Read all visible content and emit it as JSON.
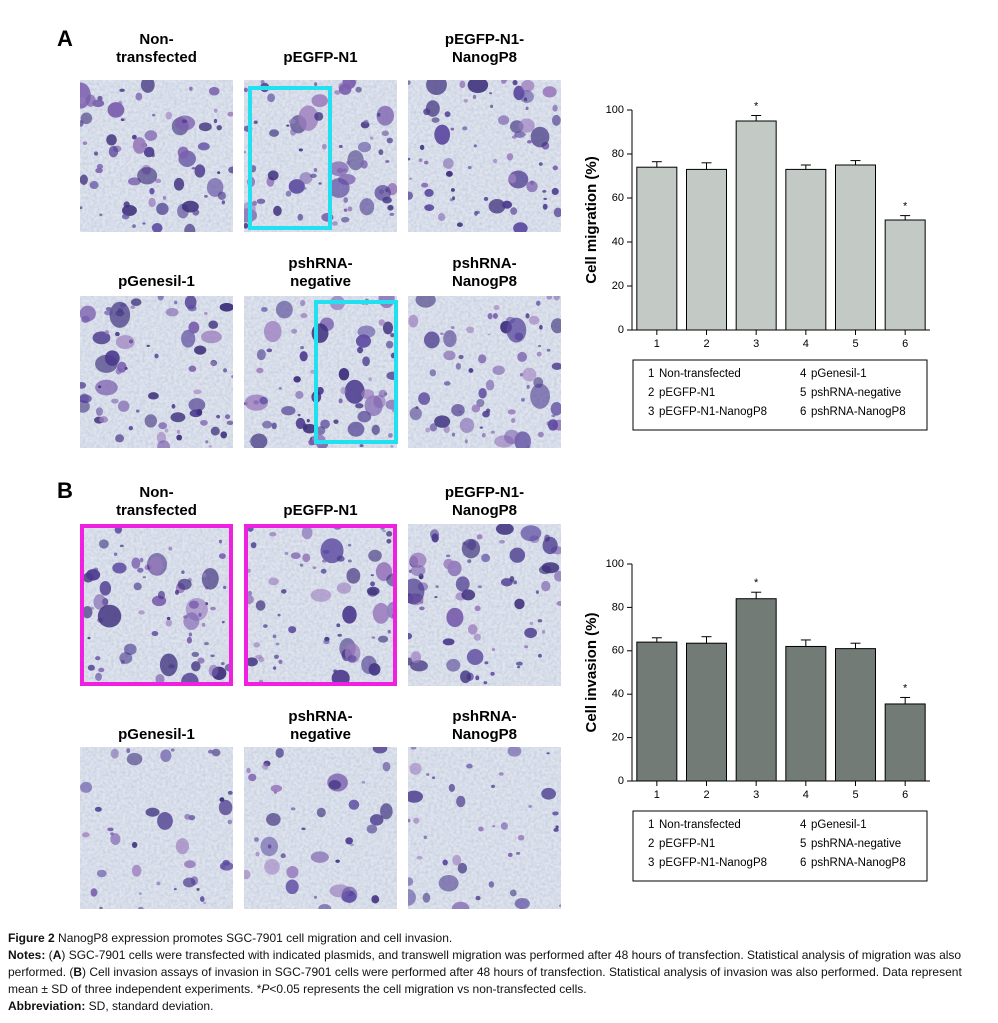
{
  "panels": [
    {
      "label": "A",
      "images": [
        {
          "title": [
            "Non-",
            "transfected"
          ]
        },
        {
          "title": [
            "pEGFP-N1"
          ]
        },
        {
          "title": [
            "pEGFP-N1-",
            "NanogP8"
          ]
        },
        {
          "title": [
            "pGenesil-1"
          ]
        },
        {
          "title": [
            "pshRNA-",
            "negative"
          ]
        },
        {
          "title": [
            "pshRNA-",
            "NanogP8"
          ]
        }
      ]
    },
    {
      "label": "B",
      "images": [
        {
          "title": [
            "Non-",
            "transfected"
          ]
        },
        {
          "title": [
            "pEGFP-N1"
          ]
        },
        {
          "title": [
            "pEGFP-N1-",
            "NanogP8"
          ]
        },
        {
          "title": [
            "pGenesil-1"
          ]
        },
        {
          "title": [
            "pshRNA-",
            "negative"
          ]
        },
        {
          "title": [
            "pshRNA-",
            "NanogP8"
          ]
        }
      ]
    }
  ],
  "chart_data": [
    {
      "type": "bar",
      "ylabel": "Cell migration (%)",
      "categories": [
        "1",
        "2",
        "3",
        "4",
        "5",
        "6"
      ],
      "values": [
        74,
        73,
        95,
        73,
        75,
        50
      ],
      "errors": [
        2.5,
        3,
        2.5,
        2,
        2,
        2
      ],
      "markers": [
        null,
        null,
        "*",
        null,
        null,
        "*"
      ],
      "color": "#c3c9c5",
      "ylim": [
        0,
        100
      ],
      "yticks": [
        0,
        20,
        40,
        60,
        80,
        100
      ],
      "legend_names": [
        "Non-transfected",
        "pEGFP-N1",
        "pEGFP-N1-NanogP8",
        "pGenesil-1",
        "pshRNA-negative",
        "pshRNA-NanogP8"
      ]
    },
    {
      "type": "bar",
      "ylabel": "Cell invasion (%)",
      "categories": [
        "1",
        "2",
        "3",
        "4",
        "5",
        "6"
      ],
      "values": [
        64,
        63.5,
        84,
        62,
        61,
        35.5
      ],
      "errors": [
        2,
        3,
        3,
        3,
        2.5,
        3
      ],
      "markers": [
        null,
        null,
        "*",
        null,
        null,
        "*"
      ],
      "color": "#737b76",
      "ylim": [
        0,
        100
      ],
      "yticks": [
        0,
        20,
        40,
        60,
        80,
        100
      ],
      "legend_names": [
        "Non-transfected",
        "pEGFP-N1",
        "pEGFP-N1-NanogP8",
        "pGenesil-1",
        "pshRNA-negative",
        "pshRNA-NanogP8"
      ]
    }
  ],
  "caption": {
    "figure": [
      {
        "text": "Figure 2",
        "bold": true
      },
      {
        "text": " NanogP8 expression promotes SGC-7901 cell migration and cell invasion."
      }
    ],
    "notes": [
      {
        "text": "Notes:",
        "bold": true
      },
      {
        "text": " ("
      },
      {
        "text": "A",
        "bold": true
      },
      {
        "text": ") SGC-7901 cells were transfected with indicated plasmids, and transwell migration was performed after 48 hours of transfection. Statistical analysis of migration was also performed. ("
      },
      {
        "text": "B",
        "bold": true
      },
      {
        "text": ") Cell invasion assays of invasion in SGC-7901 cells were performed after 48 hours of transfection. Statistical analysis of invasion was also performed. Data represent mean ± SD of three independent experiments. *"
      },
      {
        "text": "P",
        "italic": true
      },
      {
        "text": "<0.05 represents the cell migration vs non-transfected cells."
      }
    ],
    "abbreviation": [
      {
        "text": "Abbreviation:",
        "bold": true
      },
      {
        "text": " SD, standard deviation."
      }
    ]
  }
}
